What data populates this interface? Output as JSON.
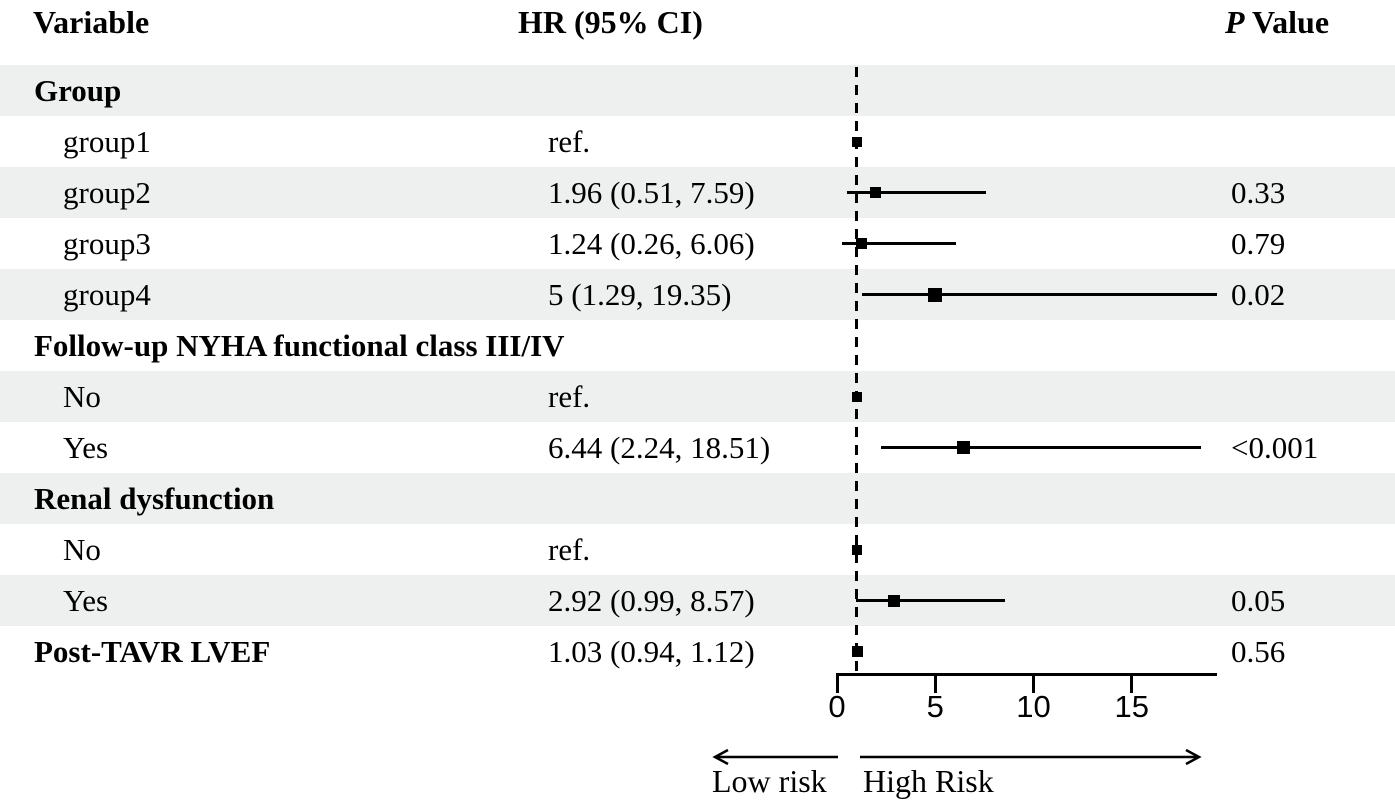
{
  "header": {
    "variable": "Variable",
    "hr_ci": "HR (95% CI)",
    "p_italic": "P",
    "p_rest": " Value"
  },
  "colors": {
    "stripe": "#edf0ee",
    "ink": "#000000"
  },
  "chart_data": {
    "type": "forest",
    "title": "",
    "xlabel_low": "Low risk",
    "xlabel_high": "High Risk",
    "axis": {
      "ticks": [
        0,
        5,
        10,
        15
      ],
      "domain": [
        0,
        19.34
      ],
      "reference_line_hr": 1,
      "grid": false
    },
    "columns": [
      "Variable",
      "HR (95% CI)",
      "P Value"
    ],
    "rows": [
      {
        "label": "Group",
        "bold": true,
        "shaded": true,
        "hr_text": "",
        "p": ""
      },
      {
        "label": "group1",
        "bold": false,
        "shaded": false,
        "hr_text": "ref.",
        "hr": 1,
        "marker": 10,
        "p": ""
      },
      {
        "label": "group2",
        "bold": false,
        "shaded": true,
        "hr_text": "1.96 (0.51, 7.59)",
        "hr": 1.96,
        "lo": 0.51,
        "hi": 7.59,
        "marker": 11,
        "p": "0.33"
      },
      {
        "label": "group3",
        "bold": false,
        "shaded": false,
        "hr_text": "1.24 (0.26, 6.06)",
        "hr": 1.24,
        "lo": 0.26,
        "hi": 6.06,
        "marker": 11,
        "p": "0.79"
      },
      {
        "label": "group4",
        "bold": false,
        "shaded": true,
        "hr_text": "5 (1.29, 19.35)",
        "hr": 5,
        "lo": 1.29,
        "hi": 19.35,
        "marker": 14,
        "p": "0.02"
      },
      {
        "label": "Follow-up NYHA functional class III/IV",
        "bold": true,
        "shaded": false,
        "hr_text": "",
        "p": ""
      },
      {
        "label": "No",
        "bold": false,
        "shaded": true,
        "hr_text": "ref.",
        "hr": 1,
        "marker": 10,
        "p": ""
      },
      {
        "label": "Yes",
        "bold": false,
        "shaded": false,
        "hr_text": "6.44 (2.24, 18.51)",
        "hr": 6.44,
        "lo": 2.24,
        "hi": 18.51,
        "marker": 13,
        "p": "<0.001"
      },
      {
        "label": "Renal dysfunction",
        "bold": true,
        "shaded": true,
        "hr_text": "",
        "p": ""
      },
      {
        "label": "No",
        "bold": false,
        "shaded": false,
        "hr_text": "ref.",
        "hr": 1,
        "marker": 10,
        "p": ""
      },
      {
        "label": "Yes",
        "bold": false,
        "shaded": true,
        "hr_text": "2.92 (0.99, 8.57)",
        "hr": 2.92,
        "lo": 0.99,
        "hi": 8.57,
        "marker": 12,
        "p": "0.05"
      },
      {
        "label": "Post-TAVR LVEF",
        "bold": true,
        "shaded": false,
        "hr_text": "1.03 (0.94, 1.12)",
        "hr": 1.03,
        "lo": 0.94,
        "hi": 1.12,
        "marker": 11,
        "p": "0.56"
      }
    ]
  }
}
